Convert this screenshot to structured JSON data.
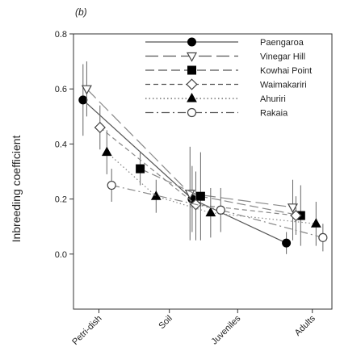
{
  "chart_data": {
    "type": "line",
    "panel_label": "(b)",
    "ylabel": "Inbreeding coefficient",
    "xlabel": "",
    "categories": [
      "Petri-dish",
      "Soil",
      "Juveniles",
      "Adults"
    ],
    "ylim": [
      -0.2,
      0.8
    ],
    "yticks": [
      0.0,
      0.2,
      0.4,
      0.6,
      0.8
    ],
    "ytick_labels": [
      "0.0",
      "0.2",
      "0.4",
      "0.6",
      "0.8"
    ],
    "grid": false,
    "legend_position": "top-right",
    "series": [
      {
        "name": "Paengaroa",
        "marker": "filled-circle",
        "dash": "solid",
        "points": [
          {
            "x": 0.0,
            "y": 0.56,
            "lo": 0.43,
            "hi": 0.69
          },
          {
            "x": 2.06,
            "y": 0.2,
            "lo": 0.08,
            "hi": 0.32
          },
          {
            "x": 3.84,
            "y": 0.04,
            "lo": 0.0,
            "hi": 0.08
          }
        ]
      },
      {
        "name": "Vinegar Hill",
        "marker": "open-triangle-down",
        "dash": "long-dash",
        "points": [
          {
            "x": 0.07,
            "y": 0.6,
            "lo": 0.5,
            "hi": 0.7
          },
          {
            "x": 2.02,
            "y": 0.22,
            "lo": 0.05,
            "hi": 0.39
          },
          {
            "x": 3.96,
            "y": 0.17,
            "lo": 0.05,
            "hi": 0.27
          }
        ]
      },
      {
        "name": "Kowhai Point",
        "marker": "filled-square",
        "dash": "medium-dash",
        "points": [
          {
            "x": 1.08,
            "y": 0.31,
            "lo": 0.25,
            "hi": 0.37
          },
          {
            "x": 2.22,
            "y": 0.21,
            "lo": 0.05,
            "hi": 0.37
          },
          {
            "x": 4.11,
            "y": 0.14,
            "lo": 0.03,
            "hi": 0.25
          }
        ]
      },
      {
        "name": "Waimakariri",
        "marker": "open-diamond",
        "dash": "short-dash",
        "points": [
          {
            "x": 0.32,
            "y": 0.46,
            "lo": 0.38,
            "hi": 0.54
          },
          {
            "x": 2.13,
            "y": 0.18,
            "lo": 0.05,
            "hi": 0.3
          },
          {
            "x": 4.02,
            "y": 0.14,
            "lo": 0.07,
            "hi": 0.21
          }
        ]
      },
      {
        "name": "Ahuriri",
        "marker": "filled-triangle-up",
        "dash": "dotted",
        "points": [
          {
            "x": 0.45,
            "y": 0.37,
            "lo": 0.29,
            "hi": 0.45
          },
          {
            "x": 1.38,
            "y": 0.21,
            "lo": 0.15,
            "hi": 0.27
          },
          {
            "x": 2.41,
            "y": 0.15,
            "lo": 0.06,
            "hi": 0.24
          },
          {
            "x": 4.4,
            "y": 0.11,
            "lo": 0.03,
            "hi": 0.19
          }
        ]
      },
      {
        "name": "Rakaia",
        "marker": "open-circle",
        "dash": "dash-dot",
        "points": [
          {
            "x": 0.54,
            "y": 0.25,
            "lo": 0.19,
            "hi": 0.31
          },
          {
            "x": 2.6,
            "y": 0.16,
            "lo": 0.08,
            "hi": 0.24
          },
          {
            "x": 4.53,
            "y": 0.06,
            "lo": 0.01,
            "hi": 0.11
          }
        ]
      }
    ],
    "category_positions": [
      0.3,
      1.63,
      2.92,
      4.33
    ],
    "x_domain": [
      -0.18,
      4.7
    ]
  }
}
